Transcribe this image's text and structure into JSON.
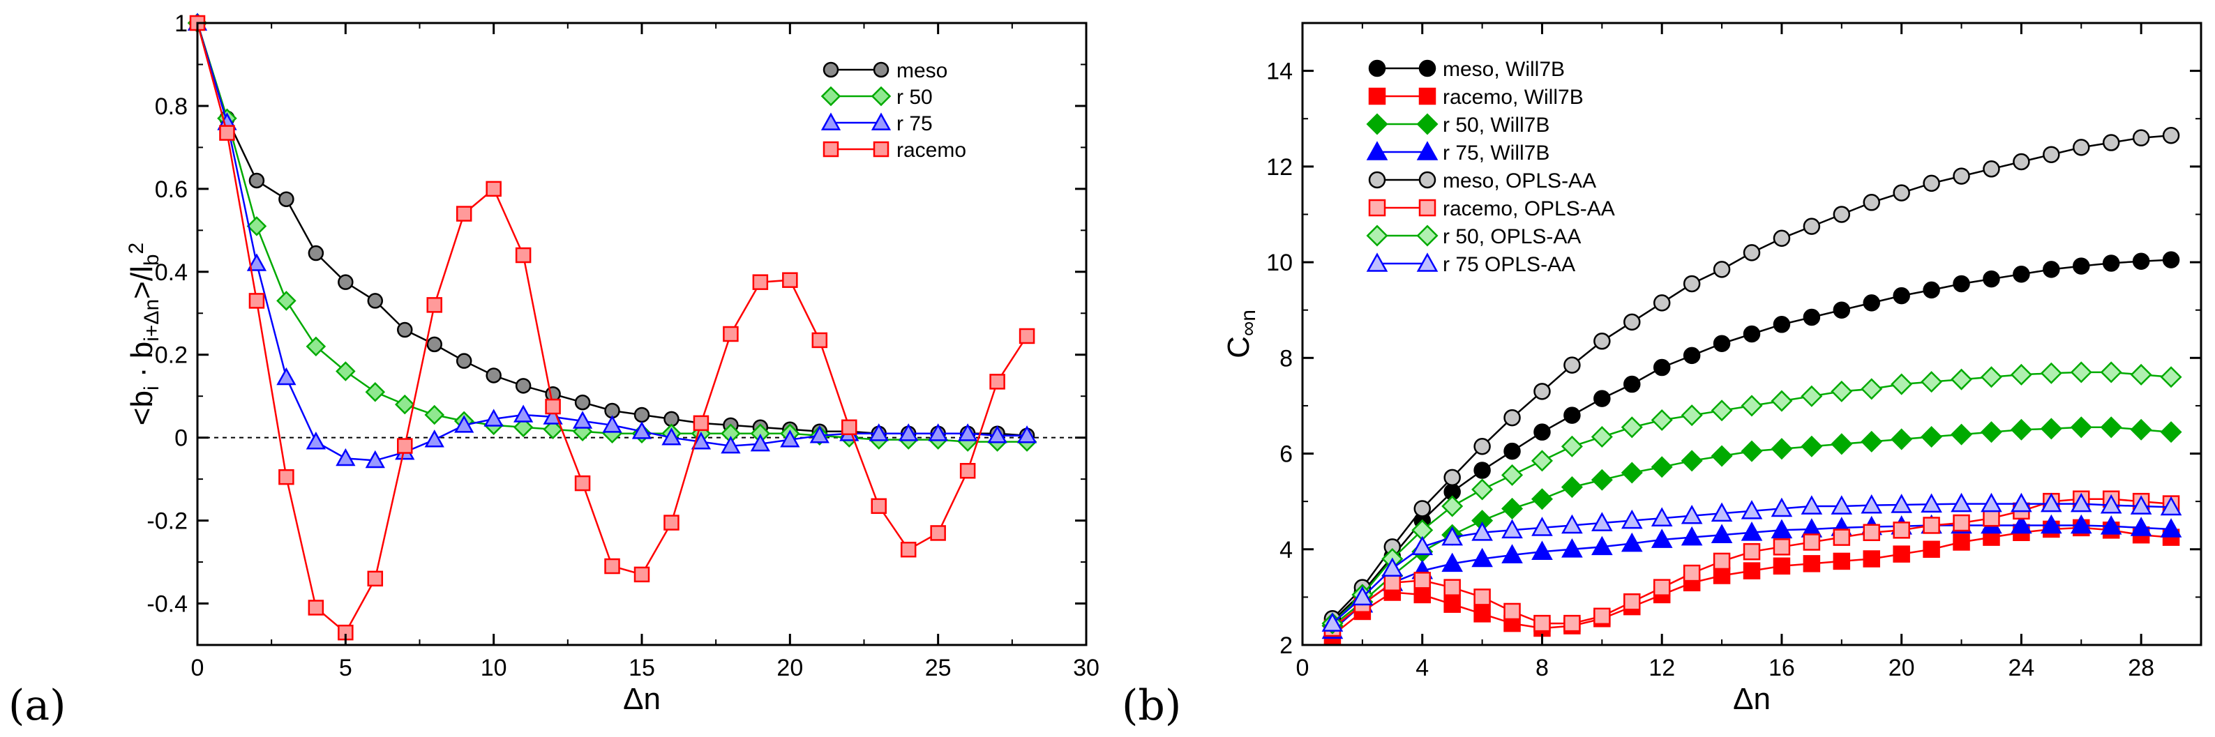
{
  "chart_data": [
    {
      "type": "line",
      "panel_label": "(a)",
      "xlabel": "Δn",
      "ylabel_parts": {
        "open": "<b",
        "sub_i": "i",
        "dot": " · b",
        "sub_shift": "i+Δn",
        "close": ">/l",
        "sub_b": "b",
        "sup": "2"
      },
      "xlim": [
        0,
        30
      ],
      "ylim": [
        -0.5,
        1
      ],
      "xticks": [
        0,
        5,
        10,
        15,
        20,
        25,
        30
      ],
      "yticks": [
        -0.4,
        -0.2,
        0,
        0.2,
        0.4,
        0.6,
        0.8,
        1
      ],
      "ytick_labels": [
        "-0.4",
        "-0.2",
        "0",
        "0.2",
        "0.4",
        "0.6",
        "0.8",
        "1"
      ],
      "legend_position": "top-right",
      "series": [
        {
          "name": "meso",
          "color": "#000000",
          "fill": "#8c8c8c",
          "marker": "circle",
          "x": [
            0,
            1,
            2,
            3,
            4,
            5,
            6,
            7,
            8,
            9,
            10,
            11,
            12,
            13,
            14,
            15,
            16,
            17,
            18,
            19,
            20,
            21,
            22,
            23,
            24,
            25,
            26,
            27,
            28
          ],
          "values": [
            1,
            0.77,
            0.62,
            0.575,
            0.445,
            0.375,
            0.33,
            0.26,
            0.225,
            0.185,
            0.15,
            0.125,
            0.105,
            0.085,
            0.065,
            0.055,
            0.045,
            0.035,
            0.03,
            0.025,
            0.02,
            0.015,
            0.015,
            0.01,
            0.01,
            0.01,
            0.01,
            0.01,
            0.005
          ]
        },
        {
          "name": "r 50",
          "color": "#00aa00",
          "fill": "#90e890",
          "marker": "diamond",
          "x": [
            0,
            1,
            2,
            3,
            4,
            5,
            6,
            7,
            8,
            9,
            10,
            11,
            12,
            13,
            14,
            15,
            16,
            17,
            18,
            19,
            20,
            21,
            22,
            23,
            24,
            25,
            26,
            27,
            28
          ],
          "values": [
            1,
            0.77,
            0.51,
            0.33,
            0.22,
            0.16,
            0.11,
            0.08,
            0.055,
            0.04,
            0.03,
            0.025,
            0.02,
            0.015,
            0.01,
            0.01,
            0.01,
            0.01,
            0.01,
            0.01,
            0.01,
            0.005,
            0.0,
            -0.005,
            -0.005,
            -0.005,
            -0.01,
            -0.01,
            -0.01
          ]
        },
        {
          "name": "r 75",
          "color": "#0000ff",
          "fill": "#9a9aff",
          "marker": "triangle",
          "x": [
            0,
            1,
            2,
            3,
            4,
            5,
            6,
            7,
            8,
            9,
            10,
            11,
            12,
            13,
            14,
            15,
            16,
            17,
            18,
            19,
            20,
            21,
            22,
            23,
            24,
            25,
            26,
            27,
            28
          ],
          "values": [
            1,
            0.76,
            0.42,
            0.145,
            -0.01,
            -0.05,
            -0.055,
            -0.035,
            -0.005,
            0.03,
            0.045,
            0.055,
            0.05,
            0.04,
            0.03,
            0.015,
            0.0,
            -0.01,
            -0.02,
            -0.015,
            -0.005,
            0.005,
            0.01,
            0.01,
            0.01,
            0.01,
            0.01,
            0.005,
            0.005
          ]
        },
        {
          "name": "racemo",
          "color": "#ff0000",
          "fill": "#ff9a9a",
          "marker": "square",
          "x": [
            0,
            1,
            2,
            3,
            4,
            5,
            6,
            7,
            8,
            9,
            10,
            11,
            12,
            13,
            14,
            15,
            16,
            17,
            18,
            19,
            20,
            21,
            22,
            23,
            24,
            25,
            26,
            27,
            28
          ],
          "values": [
            1,
            0.735,
            0.33,
            -0.095,
            -0.41,
            -0.47,
            -0.34,
            -0.02,
            0.32,
            0.54,
            0.6,
            0.44,
            0.075,
            -0.11,
            -0.31,
            -0.33,
            -0.205,
            0.035,
            0.25,
            0.375,
            0.38,
            0.235,
            0.025,
            -0.165,
            -0.27,
            -0.23,
            -0.08,
            0.135,
            0.245
          ]
        }
      ]
    },
    {
      "type": "line",
      "panel_label": "(b)",
      "xlabel": "Δn",
      "ylabel_parts": {
        "main": "C",
        "sub": "∞n"
      },
      "xlim": [
        0,
        30
      ],
      "ylim": [
        2,
        15
      ],
      "xticks": [
        0,
        4,
        8,
        12,
        16,
        20,
        24,
        28
      ],
      "yticks": [
        2,
        4,
        6,
        8,
        10,
        12,
        14
      ],
      "legend_position": "top-left",
      "series": [
        {
          "name": "meso, Will7B",
          "color": "#000000",
          "fill": "#000000",
          "marker": "circle",
          "x": [
            1,
            2,
            3,
            4,
            5,
            6,
            7,
            8,
            9,
            10,
            11,
            12,
            13,
            14,
            15,
            16,
            17,
            18,
            19,
            20,
            21,
            22,
            23,
            24,
            25,
            26,
            27,
            28,
            29
          ],
          "values": [
            2.5,
            3.1,
            3.85,
            4.6,
            5.2,
            5.65,
            6.05,
            6.45,
            6.8,
            7.15,
            7.45,
            7.8,
            8.05,
            8.3,
            8.5,
            8.7,
            8.85,
            9.0,
            9.15,
            9.3,
            9.42,
            9.55,
            9.65,
            9.75,
            9.85,
            9.92,
            9.98,
            10.02,
            10.05
          ]
        },
        {
          "name": "racemo, Will7B",
          "color": "#ff0000",
          "fill": "#ff0000",
          "marker": "square",
          "x": [
            1,
            2,
            3,
            4,
            5,
            6,
            7,
            8,
            9,
            10,
            11,
            12,
            13,
            14,
            15,
            16,
            17,
            18,
            19,
            20,
            21,
            22,
            23,
            24,
            25,
            26,
            27,
            28,
            29
          ],
          "values": [
            2.2,
            2.7,
            3.1,
            3.05,
            2.85,
            2.65,
            2.45,
            2.35,
            2.4,
            2.55,
            2.8,
            3.05,
            3.3,
            3.45,
            3.55,
            3.65,
            3.7,
            3.75,
            3.8,
            3.9,
            4.0,
            4.15,
            4.25,
            4.35,
            4.42,
            4.45,
            4.4,
            4.3,
            4.25
          ]
        },
        {
          "name": "r 50, Will7B",
          "color": "#00aa00",
          "fill": "#00aa00",
          "marker": "diamond",
          "x": [
            1,
            2,
            3,
            4,
            5,
            6,
            7,
            8,
            9,
            10,
            11,
            12,
            13,
            14,
            15,
            16,
            17,
            18,
            19,
            20,
            21,
            22,
            23,
            24,
            25,
            26,
            27,
            28,
            29
          ],
          "values": [
            2.4,
            2.9,
            3.45,
            3.95,
            4.3,
            4.6,
            4.85,
            5.05,
            5.3,
            5.45,
            5.6,
            5.72,
            5.85,
            5.95,
            6.05,
            6.1,
            6.15,
            6.2,
            6.25,
            6.3,
            6.35,
            6.4,
            6.45,
            6.5,
            6.52,
            6.55,
            6.55,
            6.5,
            6.45
          ]
        },
        {
          "name": "r 75, Will7B",
          "color": "#0000ff",
          "fill": "#0000ff",
          "marker": "triangle",
          "x": [
            1,
            2,
            3,
            4,
            5,
            6,
            7,
            8,
            9,
            10,
            11,
            12,
            13,
            14,
            15,
            16,
            17,
            18,
            19,
            20,
            21,
            22,
            23,
            24,
            25,
            26,
            27,
            28,
            29
          ],
          "values": [
            2.3,
            2.85,
            3.3,
            3.55,
            3.7,
            3.8,
            3.88,
            3.95,
            4.0,
            4.05,
            4.12,
            4.2,
            4.25,
            4.3,
            4.35,
            4.4,
            4.42,
            4.45,
            4.47,
            4.48,
            4.5,
            4.5,
            4.5,
            4.5,
            4.5,
            4.5,
            4.48,
            4.45,
            4.42
          ]
        },
        {
          "name": "meso, OPLS-AA",
          "color": "#000000",
          "fill": "#c8c8c8",
          "marker": "circle",
          "x": [
            1,
            2,
            3,
            4,
            5,
            6,
            7,
            8,
            9,
            10,
            11,
            12,
            13,
            14,
            15,
            16,
            17,
            18,
            19,
            20,
            21,
            22,
            23,
            24,
            25,
            26,
            27,
            28,
            29
          ],
          "values": [
            2.55,
            3.2,
            4.05,
            4.85,
            5.5,
            6.15,
            6.75,
            7.3,
            7.85,
            8.35,
            8.75,
            9.15,
            9.55,
            9.85,
            10.2,
            10.5,
            10.75,
            11.0,
            11.25,
            11.45,
            11.65,
            11.8,
            11.95,
            12.1,
            12.25,
            12.4,
            12.5,
            12.6,
            12.65
          ]
        },
        {
          "name": "racemo, OPLS-AA",
          "color": "#ff0000",
          "fill": "#ffb0b0",
          "marker": "square",
          "x": [
            1,
            2,
            3,
            4,
            5,
            6,
            7,
            8,
            9,
            10,
            11,
            12,
            13,
            14,
            15,
            16,
            17,
            18,
            19,
            20,
            21,
            22,
            23,
            24,
            25,
            26,
            27,
            28,
            29
          ],
          "values": [
            2.35,
            2.85,
            3.3,
            3.35,
            3.2,
            3.0,
            2.7,
            2.45,
            2.45,
            2.6,
            2.9,
            3.2,
            3.5,
            3.75,
            3.95,
            4.05,
            4.15,
            4.25,
            4.35,
            4.4,
            4.5,
            4.55,
            4.65,
            4.8,
            5.0,
            5.05,
            5.05,
            5.0,
            4.95
          ]
        },
        {
          "name": "r 50, OPLS-AA",
          "color": "#00aa00",
          "fill": "#b0f0b0",
          "marker": "diamond",
          "x": [
            1,
            2,
            3,
            4,
            5,
            6,
            7,
            8,
            9,
            10,
            11,
            12,
            13,
            14,
            15,
            16,
            17,
            18,
            19,
            20,
            21,
            22,
            23,
            24,
            25,
            26,
            27,
            28,
            29
          ],
          "values": [
            2.45,
            3.05,
            3.8,
            4.4,
            4.9,
            5.25,
            5.55,
            5.85,
            6.15,
            6.35,
            6.55,
            6.7,
            6.8,
            6.9,
            7.0,
            7.1,
            7.2,
            7.3,
            7.35,
            7.45,
            7.5,
            7.55,
            7.6,
            7.65,
            7.68,
            7.7,
            7.7,
            7.65,
            7.6
          ]
        },
        {
          "name": "r 75 OPLS-AA",
          "color": "#0000ff",
          "fill": "#c0c0ff",
          "marker": "triangle",
          "x": [
            1,
            2,
            3,
            4,
            5,
            6,
            7,
            8,
            9,
            10,
            11,
            12,
            13,
            14,
            15,
            16,
            17,
            18,
            19,
            20,
            21,
            22,
            23,
            24,
            25,
            26,
            27,
            28,
            29
          ],
          "values": [
            2.45,
            3.0,
            3.6,
            4.05,
            4.25,
            4.35,
            4.4,
            4.45,
            4.5,
            4.55,
            4.6,
            4.65,
            4.7,
            4.75,
            4.8,
            4.85,
            4.9,
            4.9,
            4.92,
            4.93,
            4.94,
            4.95,
            4.95,
            4.95,
            4.95,
            4.95,
            4.92,
            4.9,
            4.88
          ]
        }
      ]
    }
  ]
}
